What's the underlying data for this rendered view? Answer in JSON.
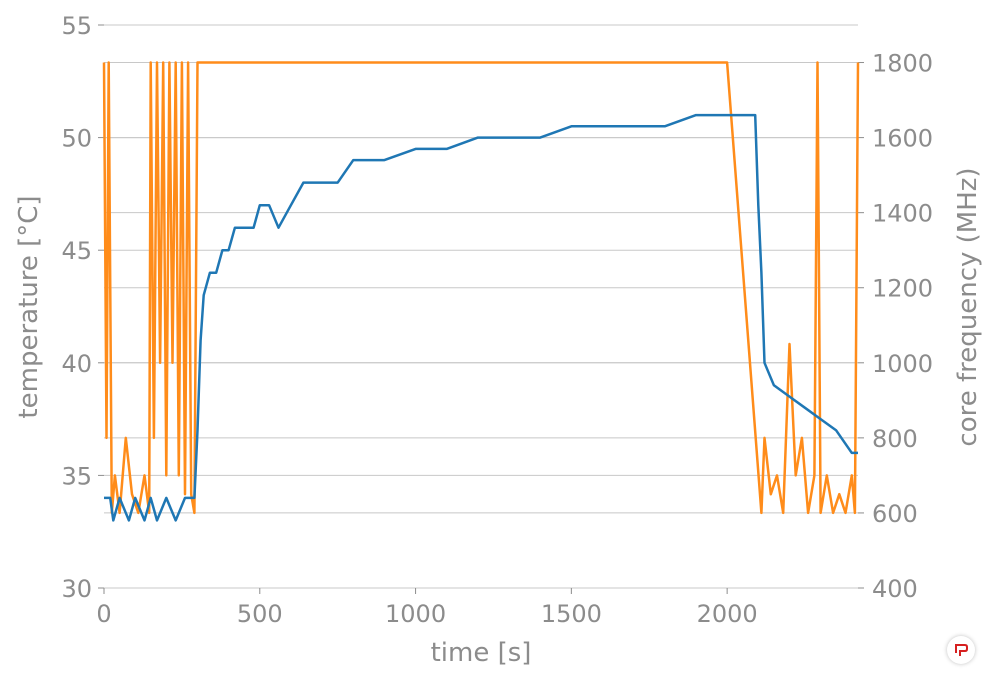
{
  "chart_data": {
    "type": "line",
    "xlabel": "time [s]",
    "ylabel_left": "temperature [°C]",
    "ylabel_right": "core frequency (MHz)",
    "xlim": [
      0,
      2420
    ],
    "ylim_left": [
      30,
      55
    ],
    "ylim_right": [
      400,
      1900
    ],
    "x_ticks": [
      0,
      500,
      1000,
      1500,
      2000
    ],
    "y_ticks_left": [
      30,
      35,
      40,
      45,
      50,
      55
    ],
    "y_ticks_right": [
      400,
      600,
      800,
      1000,
      1200,
      1400,
      1600,
      1800
    ],
    "grid": true,
    "colors": {
      "temperature": "#1f77b4",
      "frequency": "#ff8c1a",
      "text": "#8c8c8c",
      "grid": "#c8c8c8"
    },
    "series": [
      {
        "axis": "left",
        "x": [
          0,
          20,
          30,
          50,
          80,
          100,
          130,
          150,
          170,
          200,
          230,
          260,
          290,
          300,
          310,
          320,
          340,
          360,
          380,
          400,
          420,
          450,
          480,
          500,
          530,
          560,
          600,
          640,
          700,
          750,
          800,
          900,
          1000,
          1100,
          1200,
          1300,
          1400,
          1500,
          1600,
          1700,
          1800,
          1900,
          2000,
          2050,
          2090,
          2100,
          2110,
          2120,
          2150,
          2200,
          2250,
          2300,
          2350,
          2400,
          2420
        ],
        "values": [
          34,
          34,
          33,
          34,
          33,
          34,
          33,
          34,
          33,
          34,
          33,
          34,
          34,
          37,
          41,
          43,
          44,
          44,
          45,
          45,
          46,
          46,
          46,
          47,
          47,
          46,
          47,
          48,
          48,
          48,
          49,
          49,
          49.5,
          49.5,
          50,
          50,
          50,
          50.5,
          50.5,
          50.5,
          50.5,
          51,
          51,
          51,
          51,
          47,
          44,
          40,
          39,
          38.5,
          38,
          37.5,
          37,
          36,
          36
        ]
      },
      {
        "axis": "right",
        "x": [
          0,
          8,
          15,
          25,
          35,
          50,
          70,
          90,
          110,
          130,
          145,
          150,
          160,
          170,
          180,
          190,
          200,
          210,
          220,
          230,
          240,
          250,
          260,
          270,
          280,
          290,
          300,
          1000,
          2000,
          2110,
          2120,
          2140,
          2160,
          2180,
          2200,
          2220,
          2240,
          2260,
          2280,
          2290,
          2300,
          2320,
          2340,
          2360,
          2380,
          2400,
          2410,
          2420
        ],
        "values": [
          1800,
          800,
          1800,
          600,
          700,
          600,
          800,
          650,
          600,
          700,
          600,
          1800,
          800,
          1800,
          1000,
          1800,
          700,
          1800,
          1000,
          1800,
          700,
          1800,
          650,
          1800,
          650,
          600,
          1800,
          1800,
          1800,
          600,
          800,
          650,
          700,
          600,
          1050,
          700,
          800,
          600,
          700,
          1800,
          600,
          700,
          600,
          650,
          600,
          700,
          600,
          1800
        ]
      }
    ]
  }
}
